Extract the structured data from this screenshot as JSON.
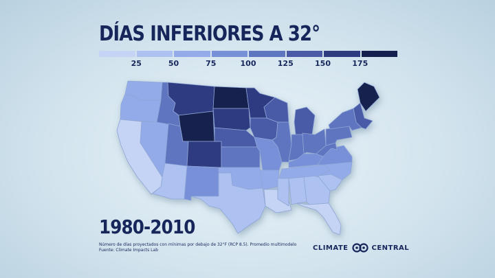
{
  "title": "DÍAS INFERIORES A 32°",
  "legend": {
    "ticks": [
      "25",
      "50",
      "75",
      "100",
      "125",
      "150",
      "175"
    ],
    "colors": [
      "#c5d4f5",
      "#aec2f1",
      "#93abe9",
      "#7790d8",
      "#5e75c0",
      "#4a5aa6",
      "#2f3b80",
      "#15204e"
    ]
  },
  "period": "1980-2010",
  "footnote": {
    "line1": "Número de días proyectados con mínimas por debajo de 32°F (RCP 8.5). Promedio multimodelo",
    "line2": "Fuente: Climate Impacts Lab"
  },
  "logo": {
    "left": "CLIMATE",
    "right": "CENTRAL",
    "mark": "climate-central-logo-icon"
  },
  "map": {
    "shade_level_by_region": {
      "washington": 2,
      "oregon": 2,
      "california": 0,
      "nevada": 2,
      "idaho": 4,
      "montana": 6,
      "wyoming": 7,
      "utah": 4,
      "arizona": 1,
      "colorado": 6,
      "new-mexico": 3,
      "north-dakota": 7,
      "south-dakota": 6,
      "nebraska": 5,
      "kansas": 4,
      "oklahoma": 2,
      "texas": 1,
      "minnesota": 6,
      "iowa": 5,
      "missouri": 3,
      "arkansas": 2,
      "louisiana": 0,
      "wisconsin": 5,
      "illinois": 4,
      "michigan": 5,
      "indiana": 4,
      "ohio": 4,
      "kentucky": 3,
      "tennessee": 2,
      "mississippi": 1,
      "alabama": 1,
      "georgia": 1,
      "florida": 0,
      "south-carolina": 1,
      "north-carolina": 2,
      "virginia": 3,
      "west-virginia": 4,
      "pennsylvania": 4,
      "new-york": 4,
      "new-england": 5,
      "maine": 7
    }
  }
}
